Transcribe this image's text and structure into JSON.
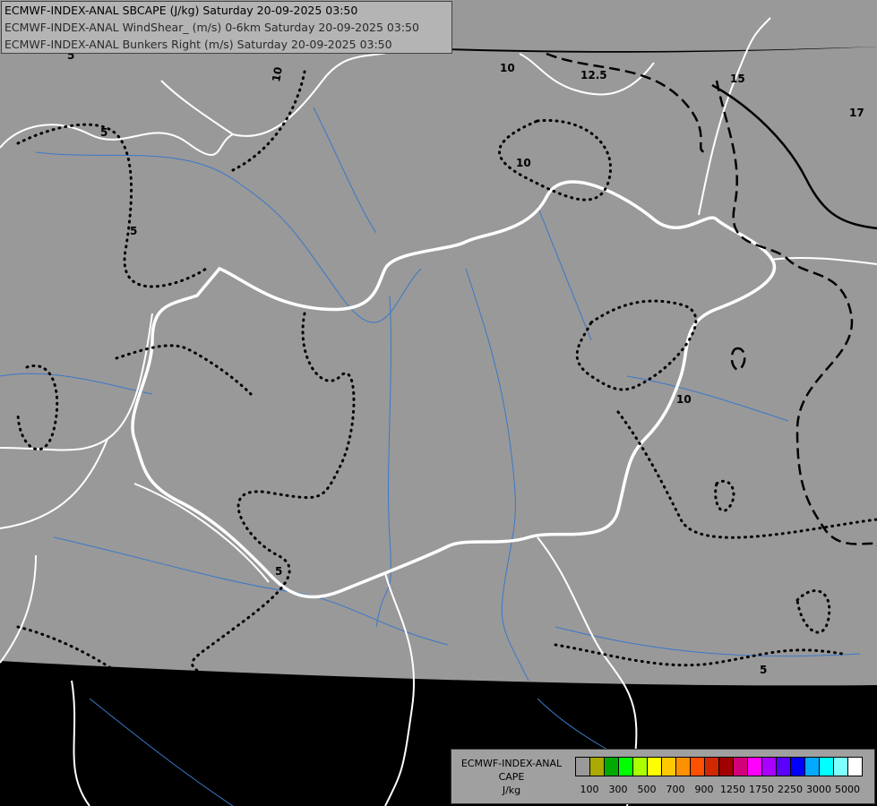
{
  "header": {
    "line1": "ECMWF-INDEX-ANAL SBCAPE (J/kg) Saturday 20-09-2025 03:50",
    "line2": "ECMWF-INDEX-ANAL WindShear_ (m/s) 0-6km Saturday 20-09-2025 03:50",
    "line3": "ECMWF-INDEX-ANAL Bunkers Right (m/s) Saturday 20-09-2025 03:50"
  },
  "legend": {
    "title1": "ECMWF-INDEX-ANAL",
    "title2": "CAPE",
    "unit": "J/kg",
    "colors": [
      "#999999",
      "#aaaa00",
      "#00aa00",
      "#00ff00",
      "#aaff00",
      "#ffff00",
      "#ffc800",
      "#ff9000",
      "#ff5000",
      "#d22800",
      "#a00000",
      "#d2007a",
      "#ff00ff",
      "#aa00ff",
      "#5a00ff",
      "#0000ff",
      "#00aaff",
      "#00ffff",
      "#80ffff",
      "#ffffff"
    ],
    "tick_labels": [
      "100",
      "300",
      "500",
      "700",
      "900",
      "1250",
      "1750",
      "2250",
      "3000",
      "5000"
    ]
  },
  "contour_labels": [
    "10",
    "10",
    "10",
    "12.5",
    "15",
    "17",
    "5",
    "5",
    "5",
    "10",
    "5",
    "5",
    "5"
  ],
  "colors": {
    "background": "#000000",
    "data_area": "#999999",
    "borders": "#ffffff",
    "rivers": "#3a78c8",
    "contours": "#000000"
  }
}
